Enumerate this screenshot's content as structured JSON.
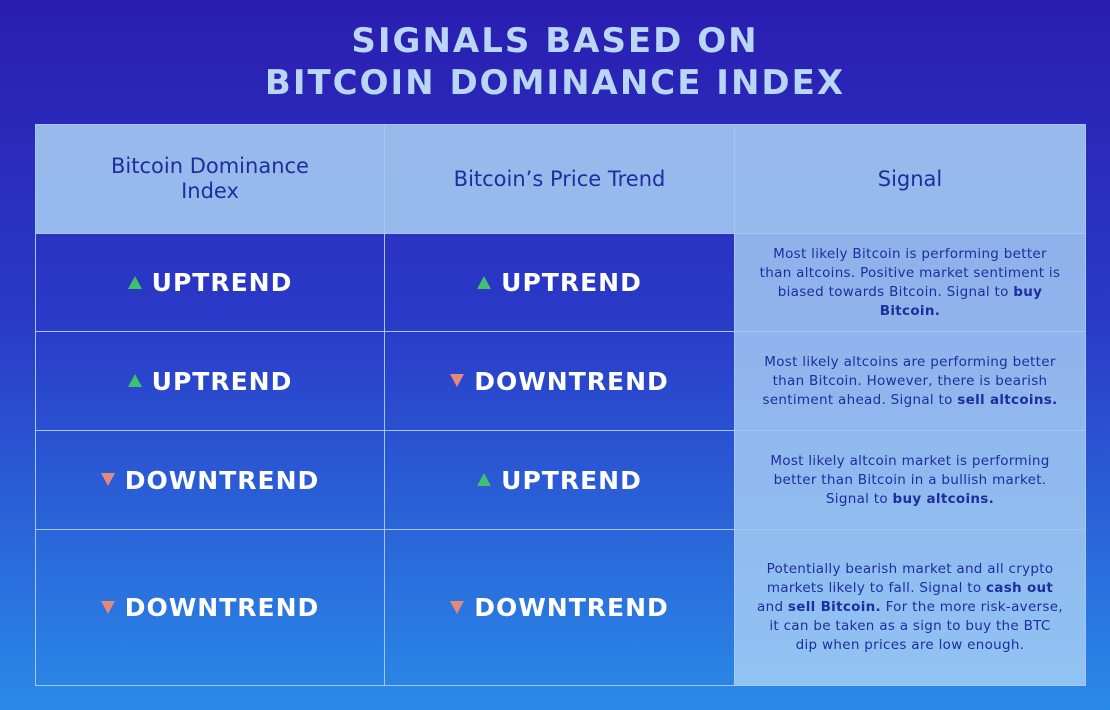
{
  "header": {
    "title": [
      "SIGNALS BASED ON",
      "BITCOIN DOMINANCE INDEX"
    ]
  },
  "table": {
    "columns": [
      "Bitcoin Dominance Index",
      "Bitcoin’s Price Trend",
      "Signal"
    ],
    "rows": [
      {
        "dominance": {
          "text": "UPTREND",
          "direction": "up"
        },
        "price": {
          "text": "UPTREND",
          "direction": "up"
        },
        "signal": [
          {
            "text": "Most likely Bitcoin is performing better than altcoins. Positive market sentiment is biased towards Bitcoin. Signal to ",
            "bold": false
          },
          {
            "text": "buy Bitcoin.",
            "bold": true
          }
        ]
      },
      {
        "dominance": {
          "text": "UPTREND",
          "direction": "up"
        },
        "price": {
          "text": "DOWNTREND",
          "direction": "down"
        },
        "signal": [
          {
            "text": "Most likely altcoins are performing better than Bitcoin. However, there is bearish sentiment ahead. Signal to ",
            "bold": false
          },
          {
            "text": "sell altcoins.",
            "bold": true
          }
        ]
      },
      {
        "dominance": {
          "text": "DOWNTREND",
          "direction": "down"
        },
        "price": {
          "text": "UPTREND",
          "direction": "up"
        },
        "signal": [
          {
            "text": "Most likely altcoin market is performing better than Bitcoin in a bullish market. Signal to ",
            "bold": false
          },
          {
            "text": "buy altcoins.",
            "bold": true
          }
        ]
      },
      {
        "dominance": {
          "text": "DOWNTREND",
          "direction": "down"
        },
        "price": {
          "text": "DOWNTREND",
          "direction": "down"
        },
        "signal": [
          {
            "text": "Potentially bearish market and all crypto markets likely to fall. Signal to ",
            "bold": false
          },
          {
            "text": "cash out",
            "bold": true
          },
          {
            "text": " and ",
            "bold": false
          },
          {
            "text": "sell Bitcoin.",
            "bold": true
          },
          {
            "text": " For the more risk-averse, it can be taken as a sign to buy the BTC dip when prices are low enough.",
            "bold": false
          }
        ]
      }
    ]
  }
}
